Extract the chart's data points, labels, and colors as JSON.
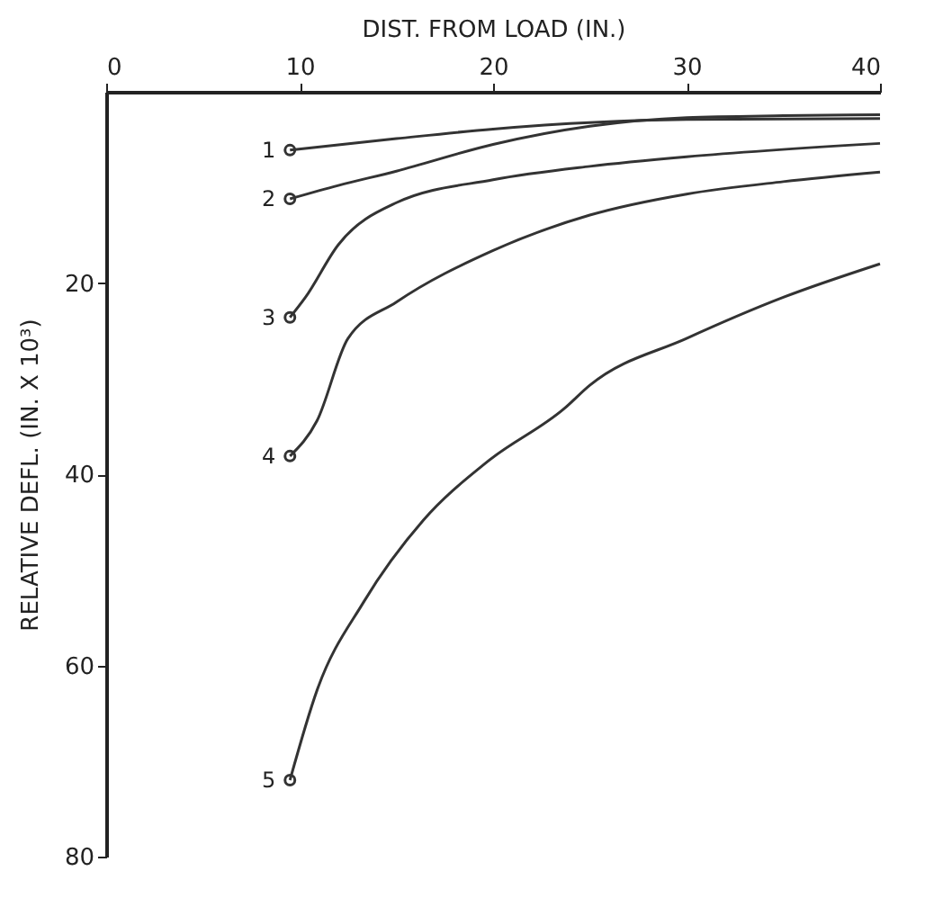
{
  "chart_data": {
    "type": "line",
    "xlabel": "DIST. FROM LOAD (IN.)",
    "ylabel": "RELATIVE DEFL. (IN. X 10³)",
    "xlim": [
      0,
      40
    ],
    "xticks": [
      0,
      10,
      20,
      30,
      40
    ],
    "ylim": [
      80,
      0
    ],
    "yticks": [
      20,
      40,
      60,
      80
    ],
    "grid": false,
    "marker": "none",
    "line_style": "solid",
    "series": [
      {
        "name": "1",
        "color": "#333333",
        "x": [
          9.5,
          15,
          20,
          30,
          40
        ],
        "values": [
          6.1,
          4.9,
          3.9,
          2.9,
          2.8
        ]
      },
      {
        "name": "2",
        "color": "#333333",
        "x": [
          9.5,
          12,
          15,
          20,
          25,
          30,
          35,
          40
        ],
        "values": [
          11.2,
          9.8,
          8.3,
          5.5,
          3.6,
          2.7,
          2.5,
          2.4
        ]
      },
      {
        "name": "3",
        "color": "#333333",
        "x": [
          9.5,
          10.3,
          12,
          15,
          20,
          25,
          30,
          40
        ],
        "values": [
          23.6,
          21.5,
          16,
          11.6,
          9.2,
          7.8,
          6.8,
          5.4
        ]
      },
      {
        "name": "4",
        "color": "#333333",
        "x": [
          9.5,
          10.9,
          12.5,
          15,
          20,
          25,
          30,
          35,
          40
        ],
        "values": [
          38.1,
          34.4,
          25.8,
          22,
          16.6,
          12.9,
          10.7,
          9.4,
          8.4
        ]
      },
      {
        "name": "5",
        "color": "#333333",
        "x": [
          9.5,
          10.9,
          13.3,
          16.4,
          19.7,
          23.7,
          25,
          30,
          35,
          40
        ],
        "values": [
          72,
          62.6,
          53.4,
          44.8,
          38.7,
          33.1,
          30.7,
          25.8,
          21.5,
          18
        ]
      },
      {
        "type": "scatter",
        "marker": "circle",
        "color": "#333333",
        "x": [
          9.5,
          9.5,
          9.5,
          9.5,
          9.5
        ],
        "values": [
          6.1,
          11.2,
          23.6,
          38.1,
          72
        ]
      }
    ]
  }
}
